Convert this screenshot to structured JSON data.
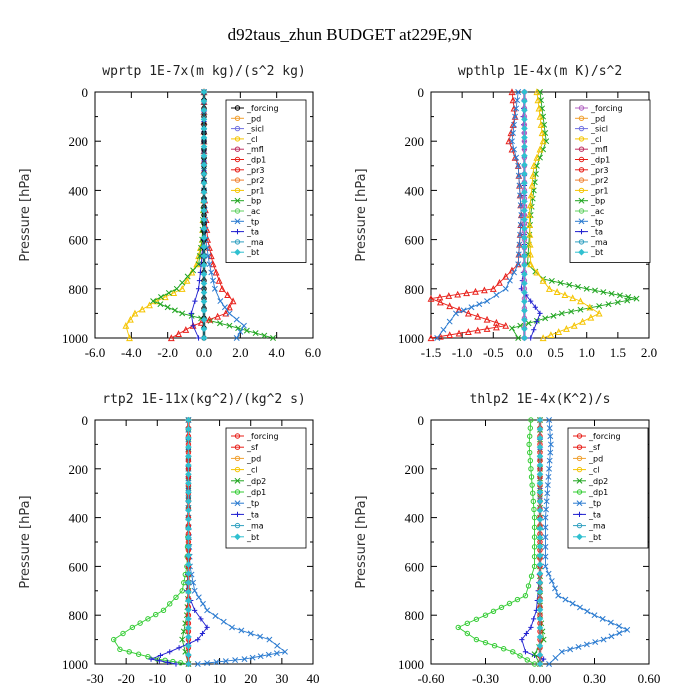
{
  "figure_title": "d92taus_zhun  BUDGET at229E,9N",
  "chart_data": [
    {
      "id": "wprtp",
      "type": "line",
      "title": "wprtp  1E-7x(m kg)/(s^2 kg)",
      "ylabel": "Pressure [hPa]",
      "xlim": [
        -6,
        6
      ],
      "ylim": [
        1000,
        0
      ],
      "xticks": [
        "-6.0",
        "-4.0",
        "-2.0",
        "0.0",
        "2.0",
        "4.0",
        "6.0"
      ],
      "xtick_values": [
        -6,
        -4,
        -2,
        0,
        2,
        4,
        6
      ],
      "yticks": [
        0,
        200,
        400,
        600,
        800,
        1000
      ],
      "legend": [
        "_forcing",
        "_pd",
        "_sicl",
        "_cl",
        "_mfl",
        "_dp1",
        "_pr3",
        "_pr2",
        "_pr1",
        "_bp",
        "_ac",
        "_tp",
        "_ta",
        "_ma",
        "_bt"
      ],
      "series": [
        {
          "name": "_pr1",
          "color": "#f5c400",
          "marker": "tri",
          "x": [
            0,
            0,
            0,
            -0.1,
            -0.4,
            -1.2,
            -2.6,
            -3.8,
            -4.3,
            -4.1
          ],
          "y": [
            0,
            200,
            400,
            600,
            700,
            800,
            850,
            900,
            950,
            1000
          ]
        },
        {
          "name": "_bp",
          "color": "#1fa51f",
          "marker": "x",
          "x": [
            0,
            0,
            0,
            -0.1,
            -0.3,
            -1.5,
            -2.8,
            -1.2,
            1.4,
            3.8
          ],
          "y": [
            0,
            200,
            400,
            600,
            700,
            800,
            850,
            900,
            950,
            1000
          ]
        },
        {
          "name": "_dp1",
          "color": "#e8201a",
          "marker": "tri",
          "x": [
            0,
            0,
            0,
            0.2,
            0.5,
            1.0,
            1.6,
            1.2,
            -0.6,
            -1.8
          ],
          "y": [
            0,
            200,
            400,
            600,
            700,
            800,
            850,
            900,
            950,
            1000
          ]
        },
        {
          "name": "_tp",
          "color": "#2b7bd0",
          "marker": "x",
          "x": [
            0,
            0,
            0,
            0.1,
            0.3,
            0.6,
            0.9,
            1.4,
            2.2,
            1.8
          ],
          "y": [
            0,
            200,
            400,
            600,
            700,
            800,
            850,
            900,
            950,
            1000
          ]
        },
        {
          "name": "_ta",
          "color": "#2020d0",
          "marker": "plus",
          "x": [
            0,
            0,
            0,
            -0.05,
            -0.15,
            -0.3,
            -0.5,
            -0.7,
            -0.6,
            -0.3
          ],
          "y": [
            0,
            200,
            400,
            600,
            700,
            800,
            850,
            900,
            950,
            1000
          ]
        },
        {
          "name": "_forcing",
          "color": "#000000",
          "marker": "circle",
          "x": [
            0,
            0,
            0,
            0,
            0,
            0,
            0,
            0,
            0,
            0
          ],
          "y": [
            0,
            100,
            200,
            300,
            400,
            500,
            600,
            700,
            800,
            1000
          ]
        },
        {
          "name": "_pd",
          "color": "#e060e0",
          "marker": "none",
          "x": [
            0,
            0
          ],
          "y": [
            0,
            1000
          ]
        },
        {
          "name": "_bt",
          "color": "#30c0d0",
          "marker": "diamond",
          "x": [
            0,
            0
          ],
          "y": [
            0,
            1000
          ]
        }
      ]
    },
    {
      "id": "wpthlp",
      "type": "line",
      "title": "wpthlp  1E-4x(m K)/s^2",
      "ylabel": "Pressure [hPa]",
      "xlim": [
        -1.5,
        2.0
      ],
      "ylim": [
        1000,
        0
      ],
      "xticks": [
        "-1.5",
        "-1.0",
        "-0.5",
        "0.0",
        "0.5",
        "1.0",
        "1.5",
        "2.0"
      ],
      "xtick_values": [
        -1.5,
        -1.0,
        -0.5,
        0,
        0.5,
        1.0,
        1.5,
        2.0
      ],
      "yticks": [
        0,
        200,
        400,
        600,
        800,
        1000
      ],
      "legend": [
        "_forcing",
        "_pd",
        "_sicl",
        "_cl",
        "_mfl",
        "_dp1",
        "_pr3",
        "_pr2",
        "_pr1",
        "_bp",
        "_ac",
        "_tp",
        "_ta",
        "_ma",
        "_bt"
      ],
      "series": [
        {
          "name": "_bp",
          "color": "#1fa51f",
          "marker": "x",
          "x": [
            0.25,
            0.3,
            0.35,
            0.2,
            0.1,
            0.05,
            0.3,
            1.0,
            1.8,
            0.6,
            -0.2,
            -0.1
          ],
          "y": [
            0,
            100,
            200,
            300,
            500,
            700,
            760,
            800,
            840,
            900,
            960,
            1000
          ]
        },
        {
          "name": "_pr1",
          "color": "#f5c400",
          "marker": "tri",
          "x": [
            0.2,
            0.25,
            0.3,
            0.15,
            0.08,
            0.1,
            0.4,
            0.9,
            1.2,
            0.8,
            0.3
          ],
          "y": [
            0,
            100,
            200,
            300,
            500,
            700,
            800,
            850,
            900,
            950,
            1000
          ]
        },
        {
          "name": "_dp1",
          "color": "#e8201a",
          "marker": "tri",
          "x": [
            -0.2,
            -0.15,
            -0.25,
            -0.1,
            -0.05,
            -0.1,
            -0.5,
            -1.5,
            -0.9,
            -0.3,
            -1.5
          ],
          "y": [
            0,
            100,
            200,
            300,
            500,
            700,
            800,
            840,
            900,
            950,
            1000
          ]
        },
        {
          "name": "_tp",
          "color": "#2b7bd0",
          "marker": "x",
          "x": [
            -0.1,
            -0.15,
            -0.2,
            -0.1,
            -0.05,
            -0.1,
            -0.3,
            -0.6,
            -1.1,
            -1.4
          ],
          "y": [
            0,
            100,
            200,
            300,
            500,
            700,
            800,
            850,
            900,
            1000
          ]
        },
        {
          "name": "_ta",
          "color": "#2020d0",
          "marker": "plus",
          "x": [
            0,
            -0.02,
            0,
            0,
            0,
            0,
            -0.05,
            0.1,
            0.25,
            0.1
          ],
          "y": [
            0,
            100,
            200,
            300,
            500,
            700,
            800,
            850,
            900,
            1000
          ]
        },
        {
          "name": "_forcing",
          "color": "#b060c0",
          "marker": "circle",
          "x": [
            0,
            0,
            0,
            0,
            0,
            0,
            0,
            0,
            0,
            0
          ],
          "y": [
            0,
            100,
            200,
            300,
            400,
            500,
            600,
            700,
            800,
            1000
          ]
        },
        {
          "name": "_bt",
          "color": "#30c0d0",
          "marker": "diamond",
          "x": [
            0,
            0
          ],
          "y": [
            0,
            1000
          ]
        }
      ]
    },
    {
      "id": "rtp2",
      "type": "line",
      "title": "rtp2  1E-11x(kg^2)/(kg^2 s)",
      "ylabel": "Pressure [hPa]",
      "xlim": [
        -30,
        40
      ],
      "ylim": [
        1000,
        0
      ],
      "xticks": [
        "-30",
        "-20",
        "-10",
        "0",
        "10",
        "20",
        "30",
        "40"
      ],
      "xtick_values": [
        -30,
        -20,
        -10,
        0,
        10,
        20,
        30,
        40
      ],
      "yticks": [
        0,
        200,
        400,
        600,
        800,
        1000
      ],
      "legend": [
        "_forcing",
        "_sf",
        "_pd",
        "_cl",
        "_dp2",
        "_dp1",
        "_tp",
        "_ta",
        "_ma",
        "_bt"
      ],
      "series": [
        {
          "name": "_dp1",
          "color": "#33cc33",
          "marker": "circle",
          "x": [
            0,
            0,
            0,
            -0.5,
            -2,
            -8,
            -18,
            -24,
            -22,
            -10,
            0
          ],
          "y": [
            0,
            200,
            400,
            600,
            700,
            780,
            850,
            900,
            940,
            980,
            1000
          ]
        },
        {
          "name": "_dp2",
          "color": "#1fa51f",
          "marker": "x",
          "x": [
            0,
            0,
            0,
            0,
            0,
            -0.5,
            -2,
            -1,
            0
          ],
          "y": [
            0,
            200,
            400,
            600,
            700,
            800,
            900,
            950,
            1000
          ]
        },
        {
          "name": "_tp",
          "color": "#2b7bd0",
          "marker": "x",
          "x": [
            0,
            0,
            0,
            0.5,
            2,
            6,
            14,
            26,
            31,
            18,
            3
          ],
          "y": [
            0,
            200,
            400,
            600,
            700,
            780,
            850,
            900,
            950,
            980,
            1000
          ]
        },
        {
          "name": "_ta",
          "color": "#2020d0",
          "marker": "plus",
          "x": [
            0,
            0,
            0,
            -0.1,
            -0.5,
            2,
            6,
            3,
            -6,
            -12,
            -4
          ],
          "y": [
            0,
            200,
            400,
            600,
            700,
            780,
            850,
            900,
            950,
            980,
            1000
          ]
        },
        {
          "name": "_forcing",
          "color": "#e8201a",
          "marker": "circle",
          "x": [
            0,
            0,
            0,
            0,
            0,
            0,
            0,
            0,
            0,
            0,
            0
          ],
          "y": [
            0,
            100,
            200,
            300,
            400,
            500,
            600,
            700,
            800,
            900,
            1000
          ]
        },
        {
          "name": "_bt",
          "color": "#30c0d0",
          "marker": "diamond",
          "x": [
            0,
            0
          ],
          "y": [
            0,
            1000
          ]
        }
      ]
    },
    {
      "id": "thlp2",
      "type": "line",
      "title": "thlp2  1E-4x(K^2)/s",
      "ylabel": "Pressure [hPa]",
      "xlim": [
        -0.6,
        0.6
      ],
      "ylim": [
        1000,
        0
      ],
      "xticks": [
        "-0.60",
        "-0.30",
        "0.00",
        "0.30",
        "0.60"
      ],
      "xtick_values": [
        -0.6,
        -0.3,
        0,
        0.3,
        0.6
      ],
      "yticks": [
        0,
        200,
        400,
        600,
        800,
        1000
      ],
      "legend": [
        "_forcing",
        "_sf",
        "_pd",
        "_cl",
        "_dp2",
        "_dp1",
        "_tp",
        "_ta",
        "_ma",
        "_bt"
      ],
      "series": [
        {
          "name": "_dp1",
          "color": "#33cc33",
          "marker": "circle",
          "x": [
            -0.05,
            -0.06,
            -0.05,
            -0.04,
            -0.03,
            -0.03,
            -0.08,
            -0.3,
            -0.45,
            -0.35,
            -0.15,
            -0.03
          ],
          "y": [
            0,
            100,
            200,
            300,
            400,
            600,
            720,
            800,
            850,
            900,
            950,
            1000
          ]
        },
        {
          "name": "_tp",
          "color": "#2b7bd0",
          "marker": "x",
          "x": [
            0.05,
            0.06,
            0.05,
            0.04,
            0.03,
            0.03,
            0.1,
            0.3,
            0.48,
            0.35,
            0.12,
            0.05
          ],
          "y": [
            0,
            100,
            200,
            300,
            400,
            600,
            720,
            800,
            860,
            900,
            950,
            1000
          ]
        },
        {
          "name": "_ta",
          "color": "#2020d0",
          "marker": "plus",
          "x": [
            0,
            0,
            0,
            0,
            -0.01,
            -0.02,
            -0.05,
            -0.1,
            -0.08,
            0.02,
            0
          ],
          "y": [
            0,
            200,
            400,
            600,
            700,
            780,
            850,
            900,
            950,
            980,
            1000
          ]
        },
        {
          "name": "_dp2",
          "color": "#1fa51f",
          "marker": "x",
          "x": [
            0,
            0,
            0,
            0,
            0,
            0.02,
            -0.03,
            0
          ],
          "y": [
            0,
            200,
            400,
            600,
            800,
            900,
            960,
            1000
          ]
        },
        {
          "name": "_forcing",
          "color": "#e8201a",
          "marker": "circle",
          "x": [
            0,
            0,
            0,
            0,
            0,
            0,
            0,
            0,
            0,
            0,
            0
          ],
          "y": [
            0,
            100,
            200,
            300,
            400,
            500,
            600,
            700,
            800,
            900,
            1000
          ]
        },
        {
          "name": "_bt",
          "color": "#30c0d0",
          "marker": "diamond",
          "x": [
            0,
            0
          ],
          "y": [
            0,
            1000
          ]
        }
      ]
    }
  ]
}
